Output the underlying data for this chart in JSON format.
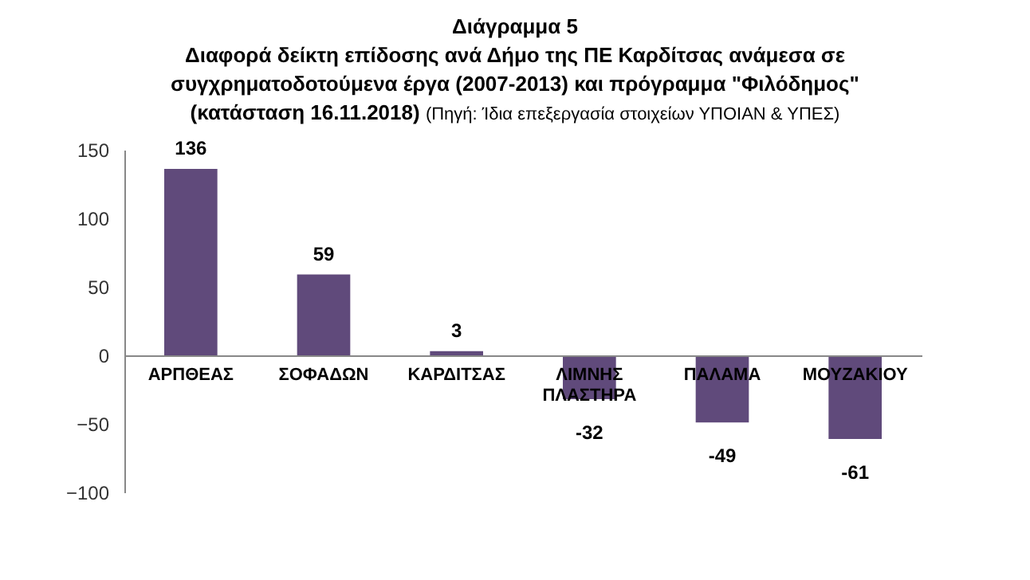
{
  "chart_data": {
    "type": "bar",
    "title": "Διάγραμμα 5",
    "subtitle": "Διαφορά δείκτη επίδοσης ανά Δήμο της ΠΕ Καρδίτσας ανάμεσα σε συγχρηματοδοτούμενα έργα (2007-2013) και πρόγραμμα \"Φιλόδημος\" (κατάσταση 16.11.2018)",
    "annotations": [
      "(Πηγή: Ίδια επεξεργασία στοιχείων ΥΠΟΙΑΝ & ΥΠΕΣ)"
    ],
    "categories": [
      "ΑΡΠΘΕΑΣ",
      "ΣΟΦΑΔΩΝ",
      "ΚΑΡΔΙΤΣΑΣ",
      "ΛΙΜΝΗΣ ΠΛΑΣΤΗΡΑ",
      "ΠΑΛΑΜΑ",
      "ΜΟΥΖΑΚΙΟΥ"
    ],
    "values": [
      136,
      59,
      3,
      -32,
      -49,
      -61
    ],
    "color": "#604a7b",
    "ylim": [
      -100,
      150
    ],
    "yticks": [
      -100,
      -50,
      0,
      50,
      100,
      150
    ],
    "grid": false,
    "data_labels": true
  }
}
